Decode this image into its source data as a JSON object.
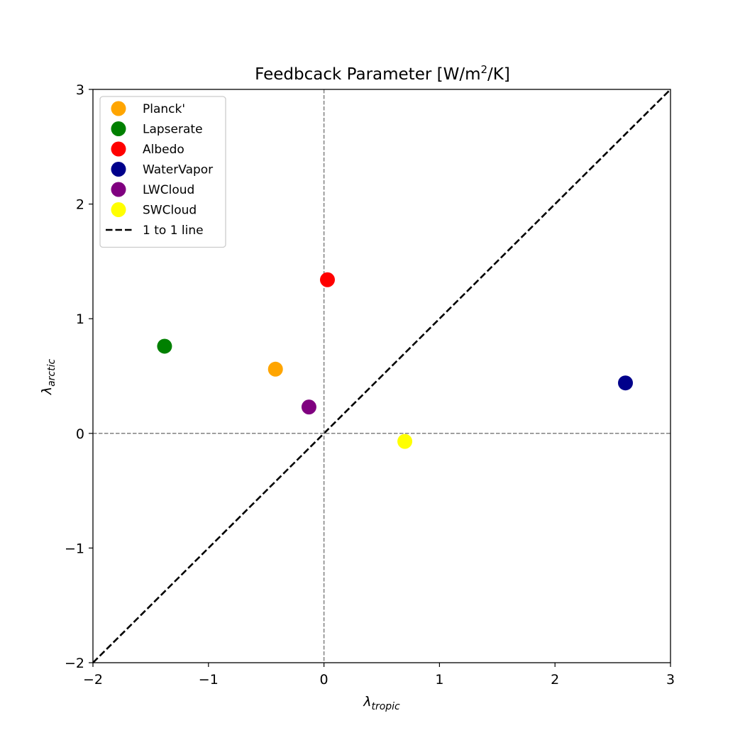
{
  "chart_data": {
    "type": "scatter",
    "title_main": "Feedbcack Parameter [W/m",
    "title_sup": "2",
    "title_end": "/K]",
    "xlabel_main": "λ",
    "xlabel_sub": "tropic",
    "ylabel_main": "λ",
    "ylabel_sub": "arctic",
    "xlim": [
      -2,
      3
    ],
    "ylim": [
      -2,
      3
    ],
    "xticks": [
      -2,
      -1,
      0,
      1,
      2,
      3
    ],
    "xtick_labels": [
      "−2",
      "−1",
      "0",
      "1",
      "2",
      "3"
    ],
    "yticks": [
      -2,
      -1,
      0,
      1,
      2,
      3
    ],
    "ytick_labels": [
      "−2",
      "−1",
      "0",
      "1",
      "2",
      "3"
    ],
    "series": [
      {
        "name": "Planck'",
        "color": "#ffa500",
        "x": -0.42,
        "y": 0.56
      },
      {
        "name": "Lapserate",
        "color": "#008000",
        "x": -1.38,
        "y": 0.76
      },
      {
        "name": "Albedo",
        "color": "#ff0000",
        "x": 0.03,
        "y": 1.34
      },
      {
        "name": "WaterVapor",
        "color": "#00008b",
        "x": 2.61,
        "y": 0.44
      },
      {
        "name": "LWCloud",
        "color": "#800080",
        "x": -0.13,
        "y": 0.23
      },
      {
        "name": "SWCloud",
        "color": "#ffff00",
        "x": 0.7,
        "y": -0.07
      }
    ],
    "reference_lines": [
      {
        "type": "diagonal",
        "name": "1 to 1 line",
        "color": "#000000",
        "style": "dashed"
      },
      {
        "type": "hline",
        "value": 0,
        "color": "#808080",
        "style": "dashed"
      },
      {
        "type": "vline",
        "value": 0,
        "color": "#808080",
        "style": "dashed"
      }
    ],
    "legend_position": "upper-left"
  }
}
